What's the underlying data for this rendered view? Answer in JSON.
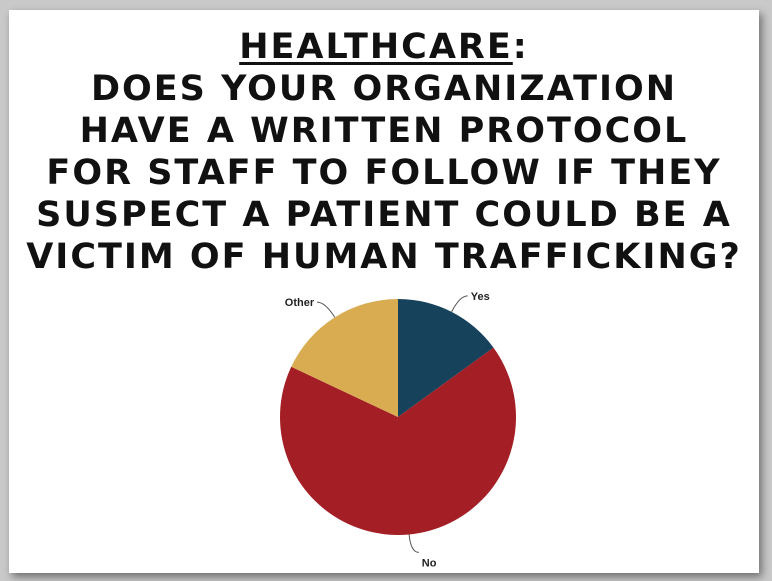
{
  "title": {
    "heading": "HEALTHCARE",
    "heading_suffix": ":",
    "lines": [
      "DOES YOUR ORGANIZATION",
      "HAVE A WRITTEN PROTOCOL",
      "FOR STAFF TO FOLLOW IF THEY",
      "SUSPECT A PATIENT COULD BE A",
      "VICTIM OF HUMAN TRAFFICKING?"
    ]
  },
  "chart_data": {
    "type": "pie",
    "title": "",
    "slices": [
      {
        "label": "Yes",
        "value": 15,
        "color": "#16425b"
      },
      {
        "label": "No",
        "value": 67,
        "color": "#a41e25"
      },
      {
        "label": "Other",
        "value": 18,
        "color": "#d9ac52"
      }
    ],
    "start_angle_deg": 0,
    "direction": "clockwise",
    "labels_outside": true,
    "legend": "none"
  }
}
